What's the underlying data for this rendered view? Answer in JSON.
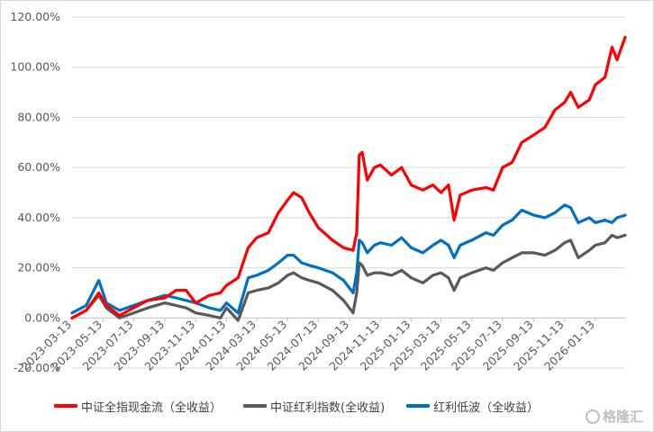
{
  "chart_data": {
    "type": "line",
    "title": "",
    "xlabel": "",
    "ylabel": "",
    "ylim": [
      -20,
      120
    ],
    "y_ticks": [
      "120.00%",
      "100.00%",
      "80.00%",
      "60.00%",
      "40.00%",
      "20.00%",
      "0.00%",
      "-20.00%"
    ],
    "x_ticks": [
      "2023-03-13",
      "2023-05-13",
      "2023-07-13",
      "2023-09-13",
      "2023-11-13",
      "2024-01-13",
      "2024-03-13",
      "2024-05-13",
      "2024-07-13",
      "2024-09-13",
      "2024-11-13",
      "2025-01-13",
      "2025-03-13",
      "2025-05-13",
      "2025-07-13",
      "2025-09-13",
      "2025-11-13",
      "2026-01-13"
    ],
    "x_range": [
      "2023-03-13",
      "2026-03-13"
    ],
    "grid": "horizontal",
    "legend_position": "bottom",
    "series": [
      {
        "name": "中证全指现金流（全收益）",
        "color": "#ff0000",
        "points": [
          [
            "2023-03-13",
            0
          ],
          [
            "2023-04-10",
            3
          ],
          [
            "2023-05-05",
            10
          ],
          [
            "2023-05-20",
            5
          ],
          [
            "2023-06-15",
            1
          ],
          [
            "2023-07-13",
            4
          ],
          [
            "2023-08-10",
            7
          ],
          [
            "2023-09-13",
            8
          ],
          [
            "2023-10-05",
            11
          ],
          [
            "2023-10-25",
            11
          ],
          [
            "2023-11-13",
            6
          ],
          [
            "2023-12-10",
            9
          ],
          [
            "2024-01-01",
            10
          ],
          [
            "2024-01-13",
            13
          ],
          [
            "2024-02-05",
            16
          ],
          [
            "2024-02-25",
            28
          ],
          [
            "2024-03-13",
            32
          ],
          [
            "2024-04-05",
            34
          ],
          [
            "2024-04-25",
            42
          ],
          [
            "2024-05-13",
            47
          ],
          [
            "2024-05-25",
            50
          ],
          [
            "2024-06-10",
            48
          ],
          [
            "2024-06-25",
            42
          ],
          [
            "2024-07-13",
            36
          ],
          [
            "2024-08-10",
            31
          ],
          [
            "2024-09-01",
            28
          ],
          [
            "2024-09-20",
            27
          ],
          [
            "2024-09-27",
            34
          ],
          [
            "2024-10-02",
            65
          ],
          [
            "2024-10-08",
            66
          ],
          [
            "2024-10-18",
            55
          ],
          [
            "2024-11-01",
            60
          ],
          [
            "2024-11-13",
            61
          ],
          [
            "2024-12-05",
            57
          ],
          [
            "2024-12-25",
            60
          ],
          [
            "2025-01-13",
            53
          ],
          [
            "2025-02-05",
            51
          ],
          [
            "2025-02-25",
            53
          ],
          [
            "2025-03-13",
            50
          ],
          [
            "2025-03-28",
            53
          ],
          [
            "2025-04-08",
            39
          ],
          [
            "2025-04-20",
            49
          ],
          [
            "2025-05-13",
            51
          ],
          [
            "2025-06-10",
            52
          ],
          [
            "2025-06-25",
            51
          ],
          [
            "2025-07-13",
            60
          ],
          [
            "2025-08-01",
            62
          ],
          [
            "2025-08-20",
            70
          ],
          [
            "2025-09-13",
            73
          ],
          [
            "2025-10-05",
            76
          ],
          [
            "2025-10-25",
            83
          ],
          [
            "2025-11-13",
            86
          ],
          [
            "2025-11-25",
            90
          ],
          [
            "2025-12-10",
            84
          ],
          [
            "2026-01-01",
            87
          ],
          [
            "2026-01-13",
            93
          ],
          [
            "2026-02-01",
            96
          ],
          [
            "2026-02-15",
            108
          ],
          [
            "2026-02-25",
            103
          ],
          [
            "2026-03-13",
            112
          ]
        ]
      },
      {
        "name": "中证红利指数(全收益)",
        "color": "#595959",
        "points": [
          [
            "2023-03-13",
            0
          ],
          [
            "2023-04-10",
            3
          ],
          [
            "2023-05-05",
            9
          ],
          [
            "2023-05-20",
            4
          ],
          [
            "2023-06-15",
            0
          ],
          [
            "2023-07-13",
            2
          ],
          [
            "2023-08-10",
            4
          ],
          [
            "2023-09-13",
            6
          ],
          [
            "2023-10-05",
            5
          ],
          [
            "2023-10-25",
            4
          ],
          [
            "2023-11-13",
            2
          ],
          [
            "2023-12-10",
            1
          ],
          [
            "2024-01-01",
            0
          ],
          [
            "2024-01-13",
            4
          ],
          [
            "2024-02-05",
            -1
          ],
          [
            "2024-02-25",
            10
          ],
          [
            "2024-03-13",
            11
          ],
          [
            "2024-04-05",
            12
          ],
          [
            "2024-04-25",
            14
          ],
          [
            "2024-05-13",
            17
          ],
          [
            "2024-05-25",
            18
          ],
          [
            "2024-06-10",
            16
          ],
          [
            "2024-06-25",
            15
          ],
          [
            "2024-07-13",
            14
          ],
          [
            "2024-08-10",
            11
          ],
          [
            "2024-09-01",
            7
          ],
          [
            "2024-09-20",
            2
          ],
          [
            "2024-09-27",
            10
          ],
          [
            "2024-10-02",
            22
          ],
          [
            "2024-10-08",
            21
          ],
          [
            "2024-10-18",
            17
          ],
          [
            "2024-11-01",
            18
          ],
          [
            "2024-11-13",
            18
          ],
          [
            "2024-12-05",
            17
          ],
          [
            "2024-12-25",
            19
          ],
          [
            "2025-01-13",
            16
          ],
          [
            "2025-02-05",
            14
          ],
          [
            "2025-02-25",
            17
          ],
          [
            "2025-03-13",
            18
          ],
          [
            "2025-03-28",
            16
          ],
          [
            "2025-04-08",
            11
          ],
          [
            "2025-04-20",
            16
          ],
          [
            "2025-05-13",
            18
          ],
          [
            "2025-06-10",
            20
          ],
          [
            "2025-06-25",
            19
          ],
          [
            "2025-07-13",
            22
          ],
          [
            "2025-08-01",
            24
          ],
          [
            "2025-08-20",
            26
          ],
          [
            "2025-09-13",
            26
          ],
          [
            "2025-10-05",
            25
          ],
          [
            "2025-10-25",
            27
          ],
          [
            "2025-11-13",
            30
          ],
          [
            "2025-11-25",
            31
          ],
          [
            "2025-12-10",
            24
          ],
          [
            "2026-01-01",
            27
          ],
          [
            "2026-01-13",
            29
          ],
          [
            "2026-02-01",
            30
          ],
          [
            "2026-02-15",
            33
          ],
          [
            "2026-02-25",
            32
          ],
          [
            "2026-03-13",
            33
          ]
        ]
      },
      {
        "name": "红利低波（全收益）",
        "color": "#0070c0",
        "points": [
          [
            "2023-03-13",
            2
          ],
          [
            "2023-04-10",
            5
          ],
          [
            "2023-05-05",
            15
          ],
          [
            "2023-05-20",
            6
          ],
          [
            "2023-06-15",
            3
          ],
          [
            "2023-07-13",
            5
          ],
          [
            "2023-08-10",
            7
          ],
          [
            "2023-09-13",
            9
          ],
          [
            "2023-10-05",
            8
          ],
          [
            "2023-10-25",
            7
          ],
          [
            "2023-11-13",
            6
          ],
          [
            "2023-12-10",
            4
          ],
          [
            "2024-01-01",
            3
          ],
          [
            "2024-01-13",
            6
          ],
          [
            "2024-02-05",
            2
          ],
          [
            "2024-02-25",
            16
          ],
          [
            "2024-03-13",
            17
          ],
          [
            "2024-04-05",
            19
          ],
          [
            "2024-04-25",
            22
          ],
          [
            "2024-05-13",
            25
          ],
          [
            "2024-05-25",
            25
          ],
          [
            "2024-06-10",
            22
          ],
          [
            "2024-06-25",
            21
          ],
          [
            "2024-07-13",
            20
          ],
          [
            "2024-08-10",
            18
          ],
          [
            "2024-09-01",
            15
          ],
          [
            "2024-09-20",
            10
          ],
          [
            "2024-09-27",
            18
          ],
          [
            "2024-10-02",
            31
          ],
          [
            "2024-10-08",
            30
          ],
          [
            "2024-10-18",
            26
          ],
          [
            "2024-11-01",
            29
          ],
          [
            "2024-11-13",
            30
          ],
          [
            "2024-12-05",
            29
          ],
          [
            "2024-12-25",
            32
          ],
          [
            "2025-01-13",
            28
          ],
          [
            "2025-02-05",
            26
          ],
          [
            "2025-02-25",
            29
          ],
          [
            "2025-03-13",
            31
          ],
          [
            "2025-03-28",
            29
          ],
          [
            "2025-04-08",
            24
          ],
          [
            "2025-04-20",
            29
          ],
          [
            "2025-05-13",
            31
          ],
          [
            "2025-06-10",
            34
          ],
          [
            "2025-06-25",
            33
          ],
          [
            "2025-07-13",
            37
          ],
          [
            "2025-08-01",
            39
          ],
          [
            "2025-08-20",
            43
          ],
          [
            "2025-09-13",
            41
          ],
          [
            "2025-10-05",
            40
          ],
          [
            "2025-10-25",
            42
          ],
          [
            "2025-11-13",
            45
          ],
          [
            "2025-11-25",
            44
          ],
          [
            "2025-12-10",
            38
          ],
          [
            "2026-01-01",
            40
          ],
          [
            "2026-01-13",
            38
          ],
          [
            "2026-02-01",
            39
          ],
          [
            "2026-02-15",
            38
          ],
          [
            "2026-02-25",
            40
          ],
          [
            "2026-03-13",
            41
          ]
        ]
      }
    ]
  },
  "watermark": {
    "text": "格隆汇"
  }
}
